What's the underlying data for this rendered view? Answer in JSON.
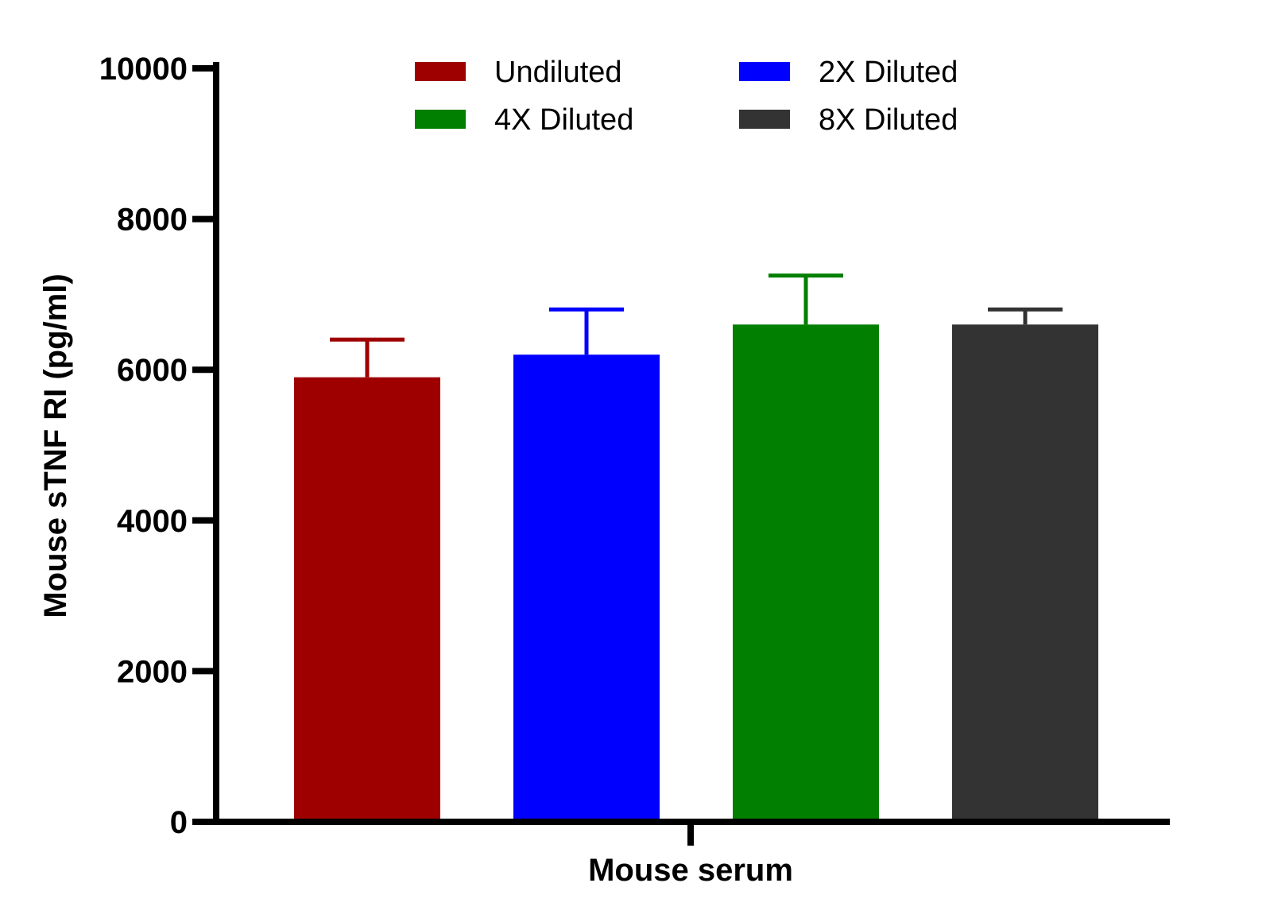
{
  "chart_data": {
    "type": "bar",
    "title": "",
    "xlabel": "Mouse serum",
    "ylabel": "Mouse sTNF RI (pg/ml)",
    "ylim": [
      0,
      10000
    ],
    "yticks": [
      "0",
      "2000",
      "4000",
      "6000",
      "8000",
      "10000"
    ],
    "categories": [
      "Mouse serum"
    ],
    "legend_position": "top",
    "grid": false,
    "series": [
      {
        "name": "Undiluted",
        "values": [
          5900
        ],
        "error": [
          500
        ],
        "color": "#9e0000"
      },
      {
        "name": "2X Diluted",
        "values": [
          6200
        ],
        "error": [
          600
        ],
        "color": "#0000ff"
      },
      {
        "name": "4X Diluted",
        "values": [
          6600
        ],
        "error": [
          650
        ],
        "color": "#007f00"
      },
      {
        "name": "8X Diluted",
        "values": [
          6600
        ],
        "error": [
          200
        ],
        "color": "#333333"
      }
    ]
  }
}
